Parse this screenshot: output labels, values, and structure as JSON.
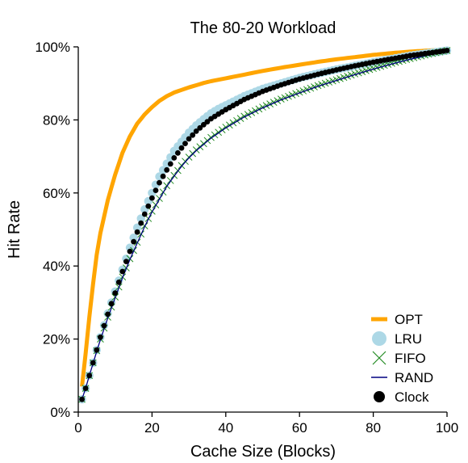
{
  "chart_data": {
    "type": "line",
    "title": "The 80-20 Workload",
    "xlabel": "Cache Size (Blocks)",
    "ylabel": "Hit Rate",
    "xlim": [
      0,
      100
    ],
    "ylim": [
      0,
      100
    ],
    "xticks": [
      0,
      20,
      40,
      60,
      80,
      100
    ],
    "xtick_labels": [
      "0",
      "20",
      "40",
      "60",
      "80",
      "100"
    ],
    "yticks": [
      0,
      20,
      40,
      60,
      80,
      100
    ],
    "ytick_labels": [
      "0%",
      "20%",
      "40%",
      "60%",
      "80%",
      "100%"
    ],
    "grid": false,
    "legend_position": "bottom-right",
    "x": [
      1,
      2,
      3,
      4,
      5,
      6,
      8,
      10,
      12,
      14,
      16,
      18,
      20,
      22,
      24,
      26,
      28,
      30,
      32,
      34,
      36,
      38,
      40,
      45,
      50,
      55,
      60,
      65,
      70,
      75,
      80,
      85,
      90,
      95,
      100
    ],
    "series": [
      {
        "name": "OPT",
        "color": "#FFA500",
        "style": "line",
        "values": [
          7,
          16,
          26,
          35,
          43,
          49,
          58,
          65,
          71,
          75.5,
          79,
          81.5,
          83.5,
          85.2,
          86.5,
          87.5,
          88.2,
          88.9,
          89.5,
          90.1,
          90.6,
          91.0,
          91.4,
          92.4,
          93.4,
          94.3,
          95.1,
          95.9,
          96.6,
          97.2,
          97.8,
          98.3,
          98.7,
          99.0,
          99.2
        ]
      },
      {
        "name": "LRU",
        "color": "#ADD8E6",
        "style": "dots",
        "values": [
          3.5,
          6.5,
          10,
          13.5,
          17,
          20.5,
          27,
          33,
          39,
          45,
          50.5,
          55.5,
          60,
          64.5,
          68,
          71.5,
          74,
          76.5,
          78.5,
          80.2,
          81.8,
          83,
          84,
          86.5,
          88.5,
          90,
          91.5,
          92.7,
          93.8,
          94.8,
          95.8,
          96.7,
          97.6,
          98.3,
          99.0
        ]
      },
      {
        "name": "FIFO",
        "color": "#228B22",
        "style": "cross",
        "values": [
          3.5,
          6.5,
          10,
          13.5,
          16.8,
          20,
          26,
          31.5,
          37,
          42,
          46.5,
          51,
          55,
          58.5,
          62,
          64.8,
          67.5,
          69.8,
          71.8,
          73.5,
          75.2,
          76.6,
          78,
          81,
          83.5,
          85.7,
          87.6,
          89.4,
          91,
          92.6,
          94.1,
          95.5,
          96.8,
          98.0,
          99.0
        ]
      },
      {
        "name": "RAND",
        "color": "#000080",
        "style": "line-thin",
        "values": [
          3.5,
          6.5,
          10,
          13.3,
          16.6,
          19.8,
          25.8,
          31.3,
          36.8,
          41.8,
          46.3,
          50.8,
          54.8,
          58.3,
          61.8,
          64.6,
          67.3,
          69.6,
          71.6,
          73.3,
          75,
          76.4,
          77.8,
          80.8,
          83.3,
          85.5,
          87.4,
          89.2,
          90.8,
          92.4,
          93.9,
          95.3,
          96.6,
          97.8,
          98.8
        ]
      },
      {
        "name": "Clock",
        "color": "#000000",
        "style": "dots-small",
        "values": [
          3.5,
          6.5,
          10,
          13.5,
          17,
          20.5,
          26.8,
          32.6,
          38.5,
          44,
          49.3,
          54.2,
          58.6,
          62.8,
          66.3,
          69.6,
          72.3,
          74.8,
          76.9,
          78.7,
          80.3,
          81.6,
          82.8,
          85.6,
          87.8,
          89.6,
          91.2,
          92.5,
          93.7,
          94.8,
          95.8,
          96.7,
          97.6,
          98.3,
          99.0
        ]
      }
    ]
  }
}
